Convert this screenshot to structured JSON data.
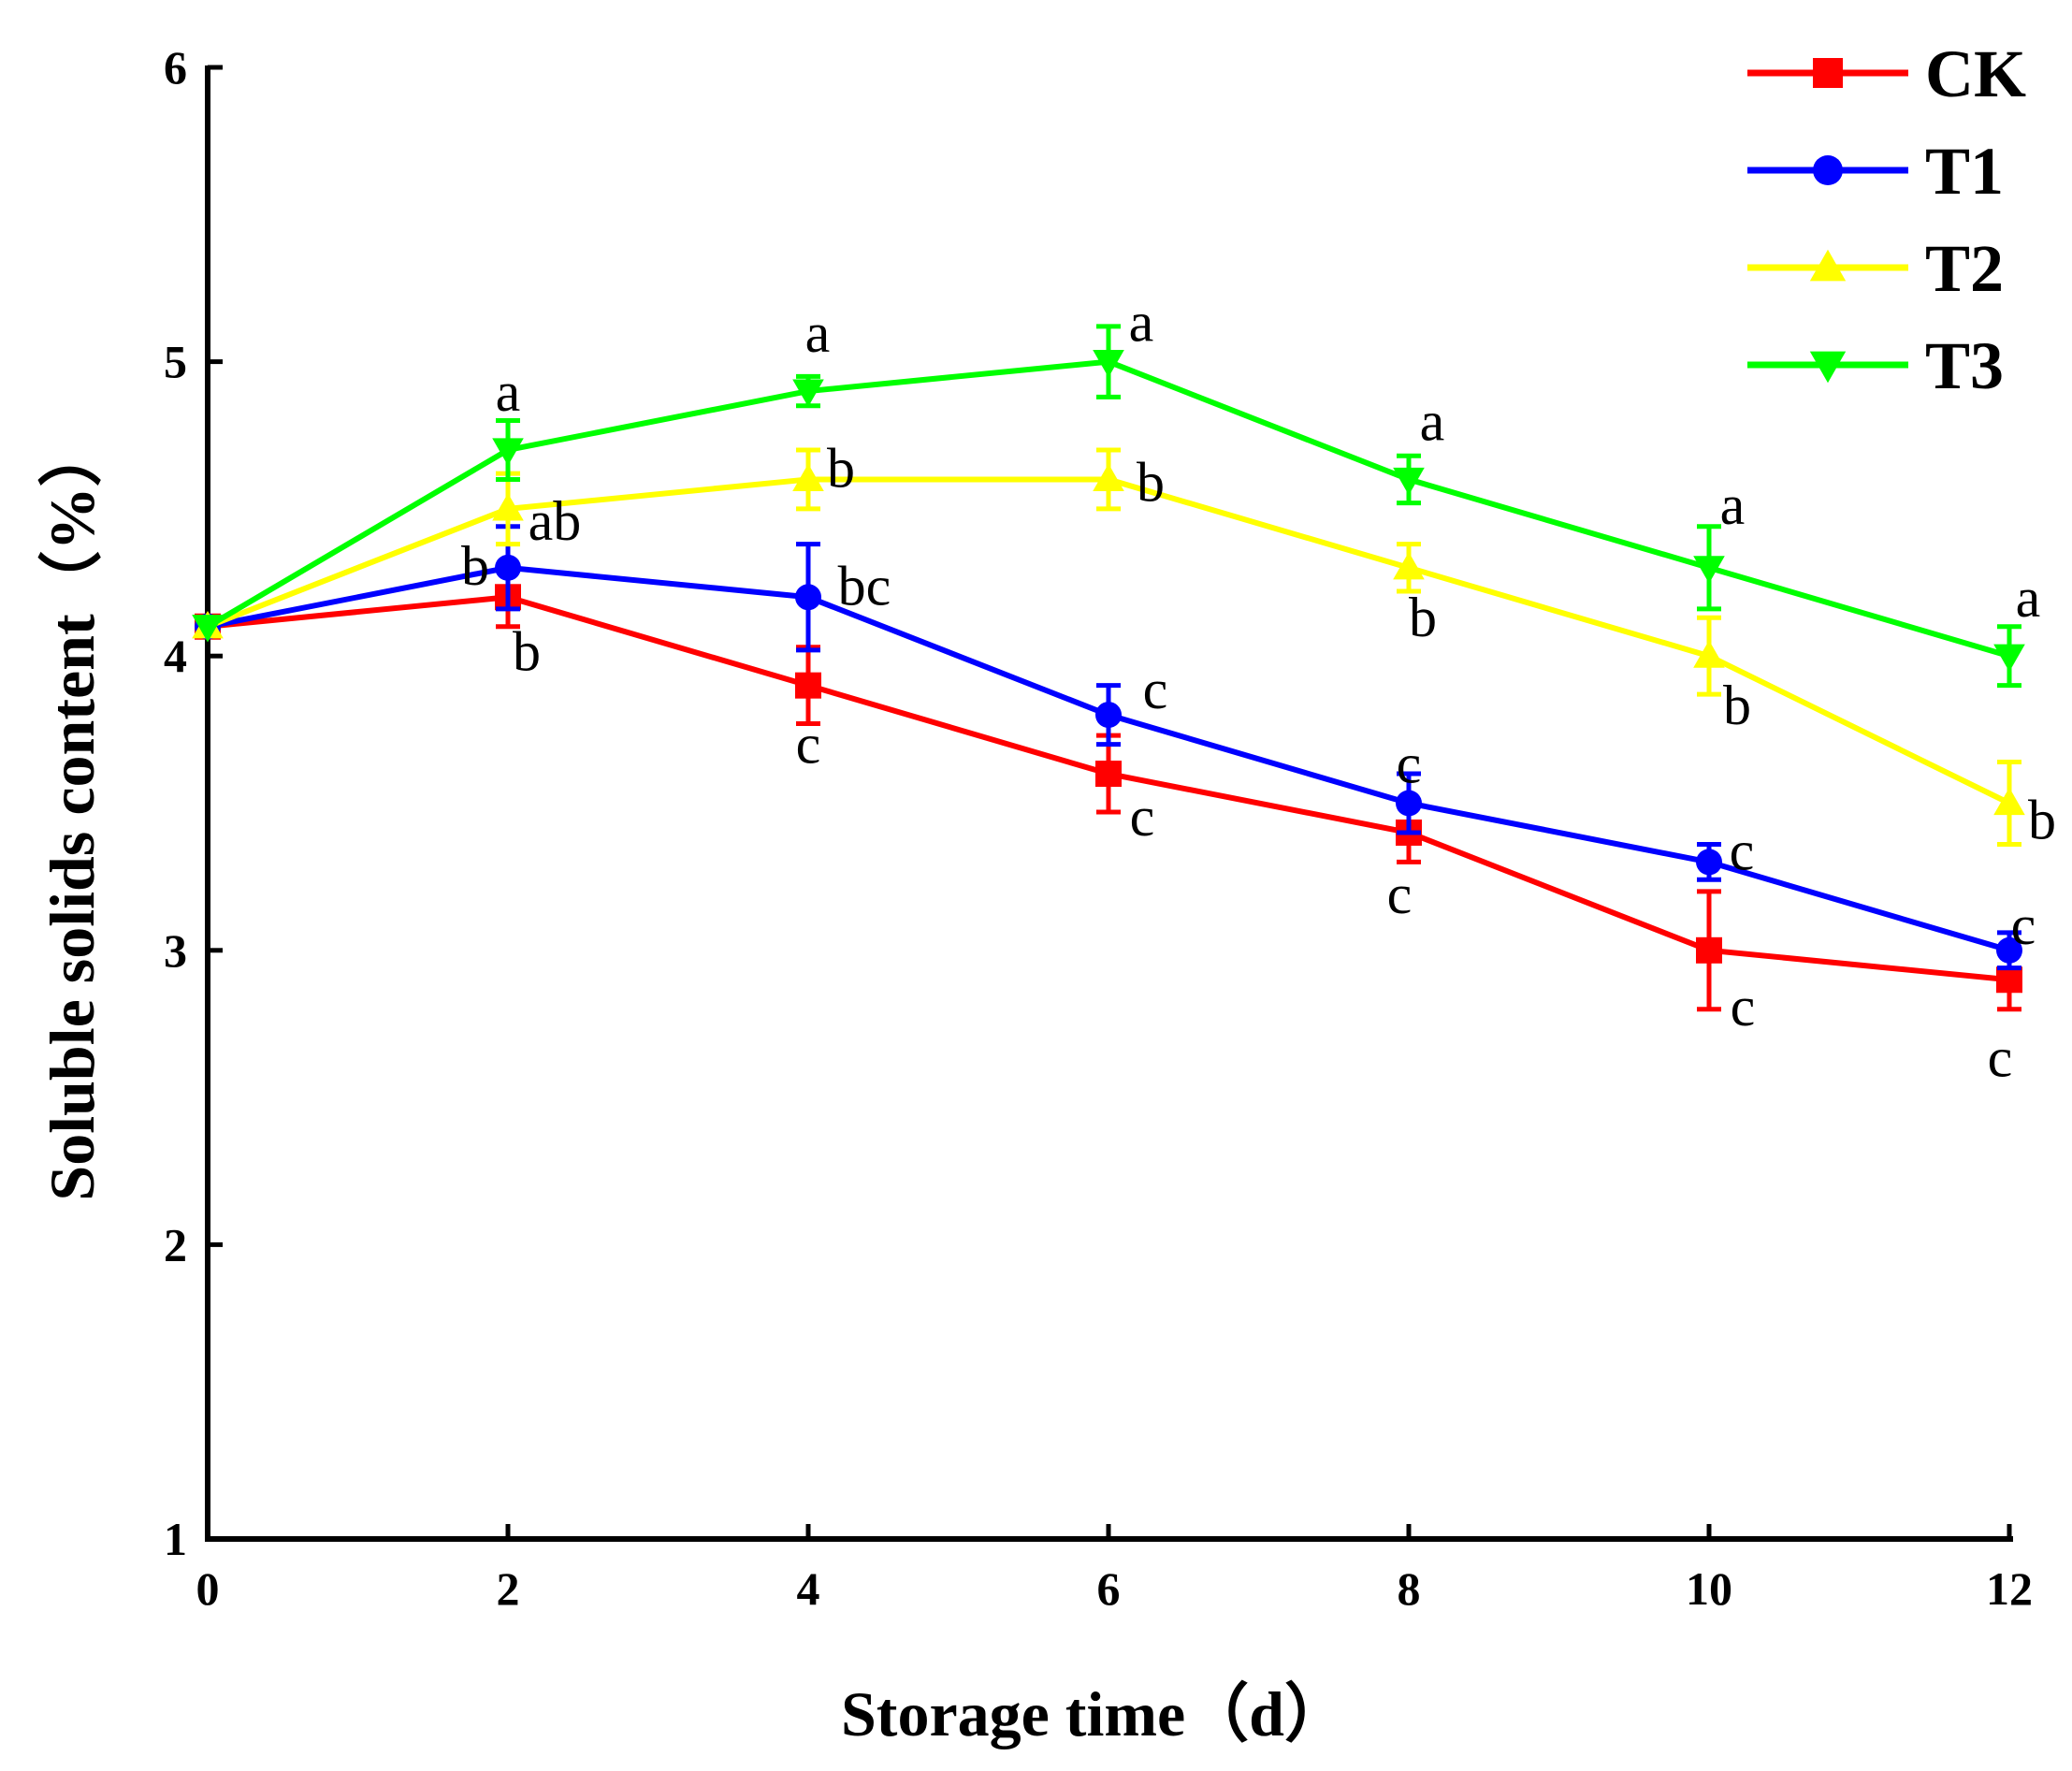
{
  "chart_data": {
    "type": "line",
    "title": "",
    "xlabel": "Storage time（d）",
    "ylabel": "Soluble solids content（%）",
    "x": [
      0,
      2,
      4,
      6,
      8,
      10,
      12
    ],
    "xlim": [
      0,
      12
    ],
    "ylim": [
      1,
      6
    ],
    "xticks": [
      "0",
      "2",
      "4",
      "6",
      "8",
      "10",
      "12"
    ],
    "yticks": [
      "1",
      "2",
      "3",
      "4",
      "5",
      "6"
    ],
    "grid": false,
    "legend_position": "top-right",
    "series": [
      {
        "name": "CK",
        "color": "#ff0000",
        "marker": "square",
        "values": [
          4.1,
          4.2,
          3.9,
          3.6,
          3.4,
          3.0,
          2.9
        ],
        "errors": [
          0.0,
          0.1,
          0.13,
          0.13,
          0.1,
          0.2,
          0.1
        ],
        "labels": [
          "",
          "b",
          "c",
          "c",
          "c",
          "c",
          "c"
        ]
      },
      {
        "name": "T1",
        "color": "#0000ff",
        "marker": "circle",
        "values": [
          4.1,
          4.3,
          4.2,
          3.8,
          3.5,
          3.3,
          3.0
        ],
        "errors": [
          0.0,
          0.14,
          0.18,
          0.1,
          0.1,
          0.06,
          0.06
        ],
        "labels": [
          "",
          "b",
          "bc",
          "c",
          "c",
          "c",
          "c"
        ]
      },
      {
        "name": "T2",
        "color": "#ffff00",
        "marker": "triangle-up",
        "values": [
          4.1,
          4.5,
          4.6,
          4.6,
          4.3,
          4.0,
          3.5
        ],
        "errors": [
          0.0,
          0.12,
          0.1,
          0.1,
          0.08,
          0.13,
          0.14
        ],
        "labels": [
          "",
          "ab",
          "b",
          "b",
          "b",
          "b",
          "b"
        ]
      },
      {
        "name": "T3",
        "color": "#00ff00",
        "marker": "triangle-down",
        "values": [
          4.1,
          4.7,
          4.9,
          5.0,
          4.6,
          4.3,
          4.0
        ],
        "errors": [
          0.0,
          0.1,
          0.05,
          0.12,
          0.08,
          0.14,
          0.1
        ],
        "labels": [
          "",
          "a",
          "a",
          "a",
          "a",
          "a",
          "a"
        ]
      }
    ]
  }
}
